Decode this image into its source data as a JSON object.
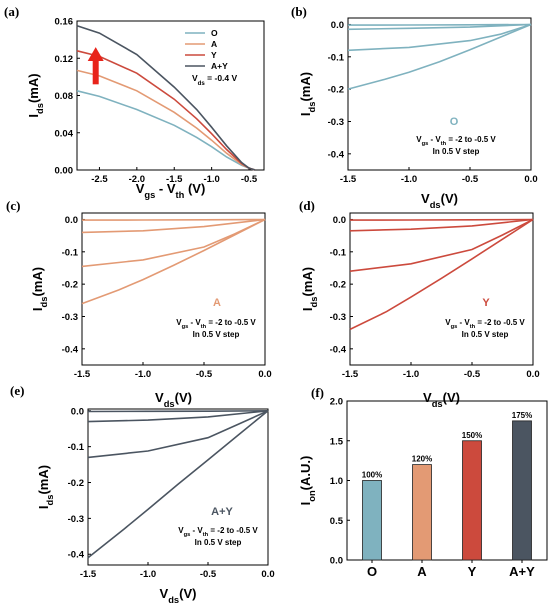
{
  "colors": {
    "O": "#7fb2bf",
    "A": "#e39a74",
    "Y": "#cc4a3d",
    "AY": "#4b5561",
    "arrow": "#e8231a"
  },
  "chart_data": [
    {
      "id": "a",
      "panel_label": "(a)",
      "type": "line",
      "xlabel_main": "V",
      "xlabel_sub": "gs",
      "xlabel_mid": " - V",
      "xlabel_sub2": "th",
      "xlabel_unit": " (V)",
      "ylabel_main": "I",
      "ylabel_sub": "ds",
      "ylabel_unit": "(mA)",
      "xlim": [
        -2.8,
        -0.3
      ],
      "ylim": [
        0.0,
        0.16
      ],
      "xticks": [
        "-2.5",
        "-2.0",
        "-1.5",
        "-1.0",
        "-0.5"
      ],
      "xtick_values": [
        -2.5,
        -2.0,
        -1.5,
        -1.0,
        -0.5
      ],
      "yticks": [
        "0.00",
        "0.04",
        "0.08",
        "0.12",
        "0.16"
      ],
      "ytick_values": [
        0.0,
        0.04,
        0.08,
        0.12,
        0.16
      ],
      "annotation_main": "V",
      "annotation_sub": "ds",
      "annotation_rest": " = -0.4 V",
      "series": [
        {
          "name": "O",
          "color_key": "O",
          "x": [
            -2.8,
            -2.5,
            -2.0,
            -1.5,
            -1.2,
            -1.0,
            -0.8,
            -0.6,
            -0.5,
            -0.42
          ],
          "y": [
            0.085,
            0.079,
            0.065,
            0.048,
            0.035,
            0.025,
            0.014,
            0.005,
            0.002,
            0.0
          ]
        },
        {
          "name": "A",
          "color_key": "A",
          "x": [
            -2.8,
            -2.5,
            -2.0,
            -1.5,
            -1.2,
            -1.0,
            -0.8,
            -0.6,
            -0.5,
            -0.42
          ],
          "y": [
            0.107,
            0.101,
            0.085,
            0.062,
            0.045,
            0.032,
            0.018,
            0.006,
            0.002,
            0.0
          ]
        },
        {
          "name": "Y",
          "color_key": "Y",
          "x": [
            -2.8,
            -2.5,
            -2.0,
            -1.5,
            -1.2,
            -1.0,
            -0.8,
            -0.6,
            -0.5,
            -0.42
          ],
          "y": [
            0.128,
            0.122,
            0.104,
            0.076,
            0.055,
            0.039,
            0.022,
            0.007,
            0.002,
            0.0
          ]
        },
        {
          "name": "A+Y",
          "color_key": "AY",
          "x": [
            -2.8,
            -2.5,
            -2.0,
            -1.5,
            -1.2,
            -1.0,
            -0.8,
            -0.6,
            -0.5,
            -0.42
          ],
          "y": [
            0.155,
            0.147,
            0.124,
            0.089,
            0.065,
            0.046,
            0.026,
            0.008,
            0.002,
            0.0
          ]
        }
      ]
    },
    {
      "id": "b",
      "panel_label": "(b)",
      "type": "line",
      "xlabel_main": "V",
      "xlabel_sub": "ds",
      "xlabel_unit": "(V)",
      "ylabel_main": "I",
      "ylabel_sub": "ds",
      "ylabel_unit": "(mA)",
      "xlim": [
        -1.5,
        0.0
      ],
      "ylim": [
        -0.45,
        0.02
      ],
      "xticks": [
        "-1.5",
        "-1.0",
        "-0.5",
        "0.0"
      ],
      "xtick_values": [
        -1.5,
        -1.0,
        -0.5,
        0.0
      ],
      "yticks": [
        "0.0",
        "-0.1",
        "-0.2",
        "-0.3",
        "-0.4"
      ],
      "ytick_values": [
        0.0,
        -0.1,
        -0.2,
        -0.3,
        -0.4
      ],
      "name_label": "O",
      "color_key": "O",
      "annotation_line1_main": "V",
      "annotation_line1_sub": "gs",
      "annotation_line1_mid": " - V",
      "annotation_line1_sub2": "th",
      "annotation_line1_rest": " = -2 to -0.5 V",
      "annotation_line2": "In 0.5 V step",
      "series": [
        {
          "x": [
            -1.5,
            -1.0,
            -0.5,
            0.0
          ],
          "y": [
            -0.002,
            -0.0015,
            -0.001,
            0.0
          ]
        },
        {
          "x": [
            -1.5,
            -1.0,
            -0.5,
            0.0
          ],
          "y": [
            -0.015,
            -0.012,
            -0.008,
            0.0
          ]
        },
        {
          "x": [
            -1.5,
            -1.0,
            -0.5,
            -0.25,
            0.0
          ],
          "y": [
            -0.08,
            -0.071,
            -0.05,
            -0.03,
            0.0
          ]
        },
        {
          "x": [
            -1.5,
            -1.2,
            -1.0,
            -0.75,
            -0.5,
            -0.25,
            0.0
          ],
          "y": [
            -0.2,
            -0.17,
            -0.148,
            -0.115,
            -0.078,
            -0.039,
            0.0
          ]
        }
      ]
    },
    {
      "id": "c",
      "panel_label": "(c)",
      "type": "line",
      "xlabel_main": "V",
      "xlabel_sub": "ds",
      "xlabel_unit": "(V)",
      "ylabel_main": "I",
      "ylabel_sub": "ds",
      "ylabel_unit": "(mA)",
      "xlim": [
        -1.5,
        0.0
      ],
      "ylim": [
        -0.45,
        0.02
      ],
      "xticks": [
        "-1.5",
        "-1.0",
        "-0.5",
        "0.0"
      ],
      "xtick_values": [
        -1.5,
        -1.0,
        -0.5,
        0.0
      ],
      "yticks": [
        "0.0",
        "-0.1",
        "-0.2",
        "-0.3",
        "-0.4"
      ],
      "ytick_values": [
        0.0,
        -0.1,
        -0.2,
        -0.3,
        -0.4
      ],
      "name_label": "A",
      "color_key": "A",
      "annotation_line1_main": "V",
      "annotation_line1_sub": "gs",
      "annotation_line1_mid": " - V",
      "annotation_line1_sub2": "th",
      "annotation_line1_rest": " = -2 to -0.5 V",
      "annotation_line2": "In 0.5 V step",
      "series": [
        {
          "x": [
            -1.5,
            -1.0,
            -0.5,
            0.0
          ],
          "y": [
            -0.002,
            -0.0015,
            -0.001,
            0.0
          ]
        },
        {
          "x": [
            -1.5,
            -1.0,
            -0.5,
            0.0
          ],
          "y": [
            -0.04,
            -0.035,
            -0.022,
            0.0
          ]
        },
        {
          "x": [
            -1.5,
            -1.0,
            -0.5,
            -0.25,
            0.0
          ],
          "y": [
            -0.145,
            -0.125,
            -0.085,
            -0.045,
            0.0
          ]
        },
        {
          "x": [
            -1.5,
            -1.2,
            -1.0,
            -0.75,
            -0.5,
            -0.25,
            0.0
          ],
          "y": [
            -0.26,
            -0.218,
            -0.186,
            -0.142,
            -0.096,
            -0.048,
            0.0
          ]
        }
      ]
    },
    {
      "id": "d",
      "panel_label": "(d)",
      "type": "line",
      "xlabel_main": "V",
      "xlabel_sub": "ds",
      "xlabel_unit": "(V)",
      "ylabel_main": "I",
      "ylabel_sub": "ds",
      "ylabel_unit": "(mA)",
      "xlim": [
        -1.5,
        0.0
      ],
      "ylim": [
        -0.45,
        0.02
      ],
      "xticks": [
        "-1.5",
        "-1.0",
        "-0.5",
        "0.0"
      ],
      "xtick_values": [
        -1.5,
        -1.0,
        -0.5,
        0.0
      ],
      "yticks": [
        "0.0",
        "-0.1",
        "-0.2",
        "-0.3",
        "-0.4"
      ],
      "ytick_values": [
        0.0,
        -0.1,
        -0.2,
        -0.3,
        -0.4
      ],
      "name_label": "Y",
      "color_key": "Y",
      "annotation_line1_main": "V",
      "annotation_line1_sub": "gs",
      "annotation_line1_mid": " - V",
      "annotation_line1_sub2": "th",
      "annotation_line1_rest": " = -2 to -0.5 V",
      "annotation_line2": "In 0.5 V step",
      "series": [
        {
          "x": [
            -1.5,
            -1.0,
            -0.5,
            0.0
          ],
          "y": [
            -0.002,
            -0.0015,
            -0.001,
            0.0
          ]
        },
        {
          "x": [
            -1.5,
            -1.0,
            -0.5,
            0.0
          ],
          "y": [
            -0.035,
            -0.03,
            -0.02,
            0.0
          ]
        },
        {
          "x": [
            -1.5,
            -1.0,
            -0.5,
            -0.25,
            0.0
          ],
          "y": [
            -0.16,
            -0.137,
            -0.093,
            -0.048,
            0.0
          ]
        },
        {
          "x": [
            -1.5,
            -1.2,
            -1.0,
            -0.75,
            -0.5,
            -0.25,
            0.0
          ],
          "y": [
            -0.34,
            -0.285,
            -0.24,
            -0.182,
            -0.122,
            -0.061,
            0.0
          ]
        }
      ]
    },
    {
      "id": "e",
      "panel_label": "(e)",
      "type": "line",
      "xlabel_main": "V",
      "xlabel_sub": "ds",
      "xlabel_unit": "(V)",
      "ylabel_main": "I",
      "ylabel_sub": "ds",
      "ylabel_unit": "(mA)",
      "xlim": [
        -1.5,
        0.0
      ],
      "ylim": [
        -0.43,
        0.005
      ],
      "xticks": [
        "-1.5",
        "-1.0",
        "-0.5",
        "0.0"
      ],
      "xtick_values": [
        -1.5,
        -1.0,
        -0.5,
        0.0
      ],
      "yticks": [
        "0.0",
        "-0.1",
        "-0.2",
        "-0.3",
        "-0.4"
      ],
      "ytick_values": [
        0.0,
        -0.1,
        -0.2,
        -0.3,
        -0.4
      ],
      "name_label": "A+Y",
      "color_key": "AY",
      "annotation_line1_main": "V",
      "annotation_line1_sub": "gs",
      "annotation_line1_mid": " - V",
      "annotation_line1_sub2": "th",
      "annotation_line1_rest": " = -2 to -0.5 V",
      "annotation_line2": "In 0.5 V step",
      "series": [
        {
          "x": [
            -1.5,
            -1.0,
            -0.5,
            0.0
          ],
          "y": [
            -0.002,
            -0.0015,
            -0.001,
            0.0
          ]
        },
        {
          "x": [
            -1.5,
            -1.0,
            -0.5,
            0.0
          ],
          "y": [
            -0.03,
            -0.026,
            -0.017,
            0.0
          ]
        },
        {
          "x": [
            -1.5,
            -1.0,
            -0.5,
            -0.25,
            0.0
          ],
          "y": [
            -0.13,
            -0.112,
            -0.075,
            -0.038,
            0.0
          ]
        },
        {
          "x": [
            -1.5,
            -1.2,
            -1.0,
            -0.75,
            -0.5,
            -0.25,
            0.0
          ],
          "y": [
            -0.41,
            -0.33,
            -0.275,
            -0.205,
            -0.137,
            -0.068,
            0.0
          ]
        }
      ]
    },
    {
      "id": "f",
      "panel_label": "(f)",
      "type": "bar",
      "ylabel_main": "I",
      "ylabel_sub": "on",
      "ylabel_unit": "(A.U.)",
      "ylim": [
        0.0,
        2.0
      ],
      "yticks": [
        "0.0",
        "0.5",
        "1.0",
        "1.5",
        "2.0"
      ],
      "ytick_values": [
        0.0,
        0.5,
        1.0,
        1.5,
        2.0
      ],
      "categories": [
        "O",
        "A",
        "Y",
        "A+Y"
      ],
      "color_keys": [
        "O",
        "A",
        "Y",
        "AY"
      ],
      "values": [
        1.0,
        1.2,
        1.5,
        1.75
      ],
      "data_labels": [
        "100%",
        "120%",
        "150%",
        "175%"
      ]
    }
  ]
}
